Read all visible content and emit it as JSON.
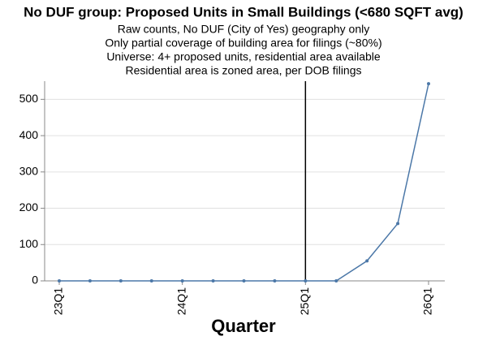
{
  "chart_data": {
    "type": "line",
    "title": "No DUF group: Proposed Units in Small Buildings (<680 SQFT avg)",
    "subtitle": [
      "Raw counts, No DUF (City of Yes) geography only",
      "Only partial coverage of building area for filings (~80%)",
      "Universe: 4+ proposed units, residential area available",
      "Residential area is zoned area, per DOB filings"
    ],
    "x_label": "Quarter",
    "categories": [
      "23Q1",
      null,
      null,
      null,
      "24Q1",
      null,
      null,
      null,
      "25Q1",
      null,
      null,
      null,
      "26Q1"
    ],
    "values": [
      0,
      0,
      0,
      0,
      0,
      0,
      0,
      0,
      0,
      0,
      55,
      158,
      543
    ],
    "color": "#4c78a8",
    "vline_category": "25Q1",
    "ylim": [
      0,
      550
    ],
    "yticks": [
      0,
      100,
      200,
      300,
      400,
      500
    ],
    "grid": true
  }
}
